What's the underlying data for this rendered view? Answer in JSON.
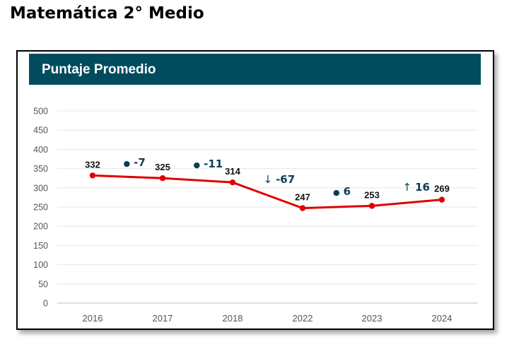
{
  "page_title": "Matemática 2° Medio",
  "chart_data": {
    "type": "line",
    "title": "Puntaje Promedio",
    "categories": [
      "2016",
      "2017",
      "2018",
      "2022",
      "2023",
      "2024"
    ],
    "values": [
      332,
      325,
      314,
      247,
      253,
      269
    ],
    "ylim": [
      0,
      500
    ],
    "yticks": [
      "0",
      "50",
      "100",
      "150",
      "200",
      "250",
      "300",
      "350",
      "400",
      "450",
      "500"
    ],
    "grid": true,
    "series_color": "#e00000",
    "header_color": "#004c5e",
    "changes": [
      {
        "marker": "●",
        "value": "-7"
      },
      {
        "marker": "●",
        "value": "-11"
      },
      {
        "marker": "↓",
        "value": "-67"
      },
      {
        "marker": "●",
        "value": "6"
      },
      {
        "marker": "↑",
        "value": "16"
      }
    ],
    "change_color": "#0d3d56"
  }
}
